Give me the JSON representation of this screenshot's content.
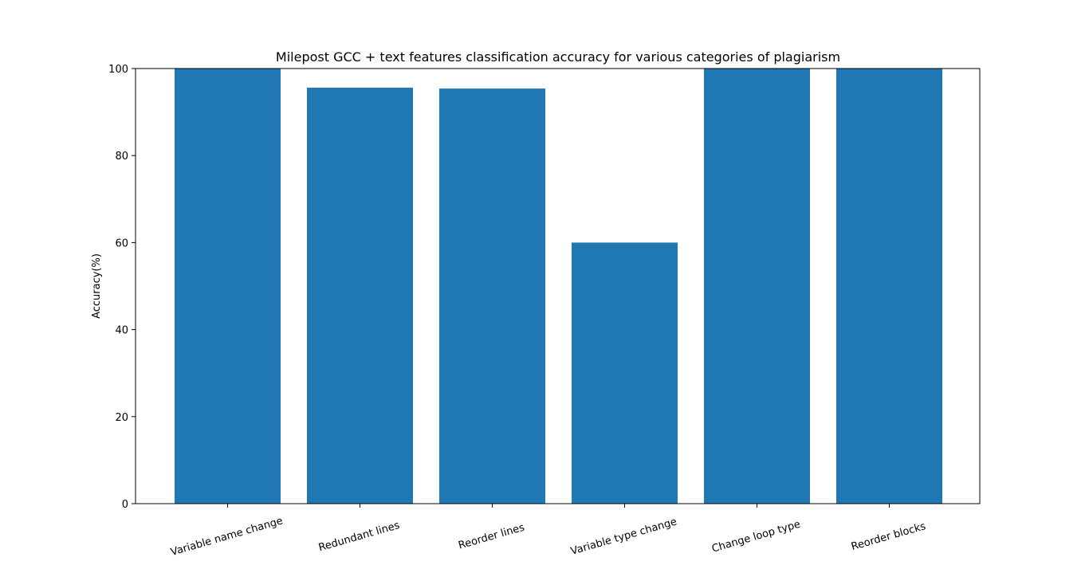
{
  "chart_data": {
    "type": "bar",
    "title": "Milepost GCC + text features classification accuracy for various categories of plagiarism",
    "xlabel": "",
    "ylabel": "Accuracy(%)",
    "ylim": [
      0,
      100
    ],
    "yticks": [
      0,
      20,
      40,
      60,
      80,
      100
    ],
    "categories": [
      "Variable name change",
      "Redundant lines",
      "Reorder lines",
      "Variable type change",
      "Change loop type",
      "Reorder blocks"
    ],
    "values": [
      100,
      95.6,
      95.4,
      60,
      100,
      100
    ],
    "bar_color": "#1f77b4",
    "grid": false,
    "legend": "none"
  }
}
